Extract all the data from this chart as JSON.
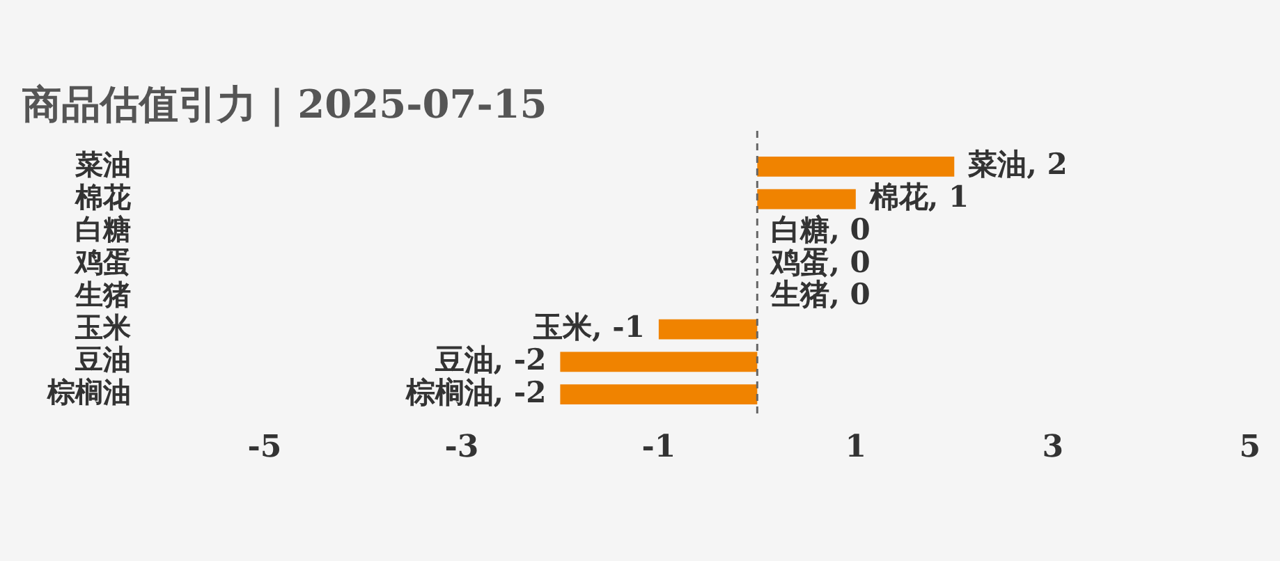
{
  "chart_data": {
    "type": "bar",
    "orientation": "horizontal",
    "title": "商品估值引力 | 2025-07-15",
    "categories": [
      "菜油",
      "棉花",
      "白糖",
      "鸡蛋",
      "生猪",
      "玉米",
      "豆油",
      "棕榈油"
    ],
    "values": [
      2,
      1,
      0,
      0,
      0,
      -1,
      -2,
      -2
    ],
    "value_labels": [
      "菜油, 2",
      "棉花, 1",
      "白糖, 0",
      "鸡蛋, 0",
      "生猪, 0",
      "玉米, -1",
      "豆油, -2",
      "棕榈油, -2"
    ],
    "color": "#f08300",
    "xlim": [
      -5,
      5
    ],
    "xticks": [
      -5,
      -3,
      -1,
      1,
      3,
      5
    ],
    "ref_lines": [
      {
        "axis": "x",
        "value": 0,
        "color": "#666666",
        "line_style": "dashed"
      }
    ],
    "grid": false,
    "legend": false
  }
}
